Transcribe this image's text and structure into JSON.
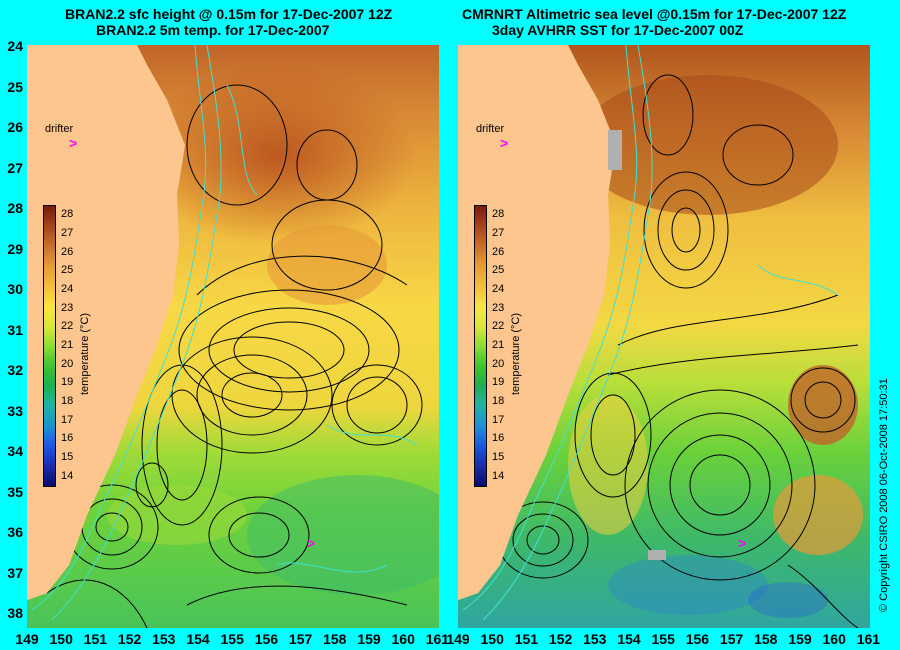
{
  "left_panel": {
    "title_line1": "BRAN2.2 sfc height @ 0.15m for 17-Dec-2007 12Z",
    "title_line2": "BRAN2.2 5m temp. for 17-Dec-2007"
  },
  "right_panel": {
    "title_line1": "CMRNRT Altimetric sea level  @0.15m  for 17-Dec-2007 12Z",
    "title_line2": "3day AVHRR SST for 17-Dec-2007 00Z"
  },
  "drifter_label": "drifter",
  "drifter_marker": ">",
  "colorbar": {
    "label": "temperature (°C)",
    "ticks": [
      "28",
      "27",
      "26",
      "25",
      "24",
      "23",
      "22",
      "21",
      "20",
      "19",
      "18",
      "17",
      "16",
      "15",
      "14"
    ]
  },
  "y_axis_labels": [
    "24",
    "25",
    "26",
    "27",
    "28",
    "29",
    "30",
    "31",
    "32",
    "33",
    "34",
    "35",
    "36",
    "37",
    "38"
  ],
  "x_axis_labels": [
    "149",
    "150",
    "151",
    "152",
    "153",
    "154",
    "155",
    "156",
    "157",
    "158",
    "159",
    "160",
    "161"
  ],
  "copyright": "© Copyright CSIRO 2008   06-Oct-2008 17:50:31",
  "colors": {
    "background": "#00ffff",
    "land": "#fcc68e",
    "contour": "#000000",
    "isobath": "#40e0d0",
    "drifter": "#ff00ff"
  }
}
